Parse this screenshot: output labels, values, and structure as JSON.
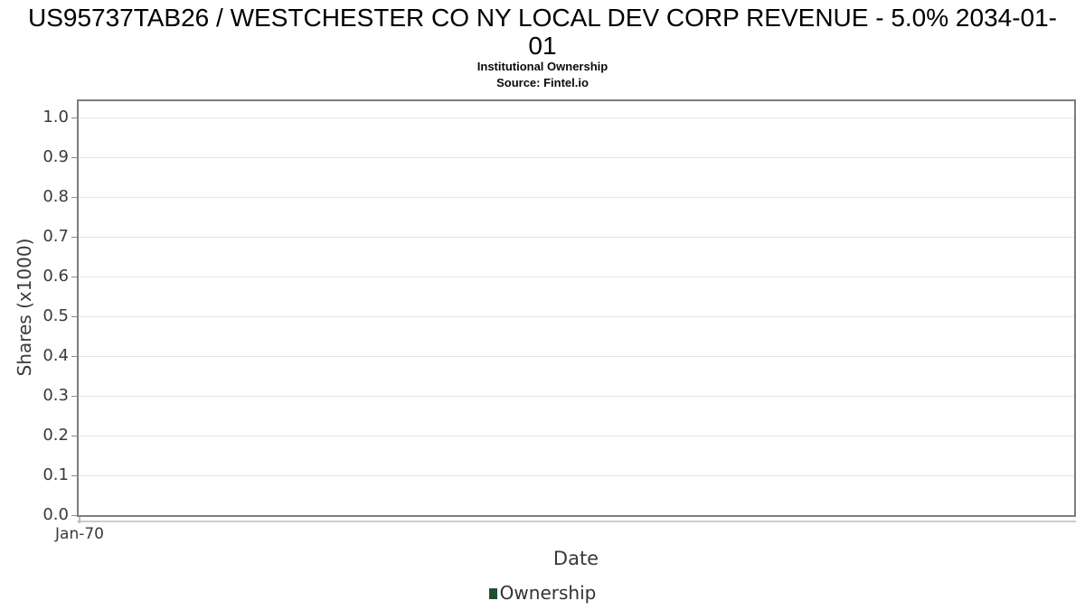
{
  "header": {
    "title": "US95737TAB26 / WESTCHESTER CO NY LOCAL DEV CORP REVENUE - 5.0% 2034-01-01",
    "title_lines": [
      "US95737TAB26 / WESTCHESTER CO NY LOCAL DEV CORP REVENUE - 5.0% 2034-01-",
      "01"
    ],
    "subtitle": "Institutional Ownership",
    "source": "Source: Fintel.io"
  },
  "chart_data": {
    "type": "line",
    "title": "US95737TAB26 / WESTCHESTER CO NY LOCAL DEV CORP REVENUE - 5.0% 2034-01-01",
    "subtitle": "Institutional Ownership",
    "source": "Source: Fintel.io",
    "xlabel": "Date",
    "ylabel": "Shares (x1000)",
    "x_tick_labels": [
      "Jan-70"
    ],
    "y_ticks": [
      0.0,
      0.1,
      0.2,
      0.3,
      0.4,
      0.5,
      0.6,
      0.7,
      0.8,
      0.9,
      1.0
    ],
    "y_tick_labels": [
      "0.0",
      "0.1",
      "0.2",
      "0.3",
      "0.4",
      "0.5",
      "0.6",
      "0.7",
      "0.8",
      "0.9",
      "1.0"
    ],
    "ylim": [
      0,
      1.05
    ],
    "grid": "horizontal",
    "plot_background": "#ffffff",
    "legend": {
      "position": "bottom-center",
      "entries": [
        {
          "label": "Ownership",
          "color": "#1f512f"
        }
      ]
    },
    "series": [
      {
        "name": "Ownership",
        "color": "#1f512f",
        "x": [],
        "values": []
      }
    ]
  }
}
